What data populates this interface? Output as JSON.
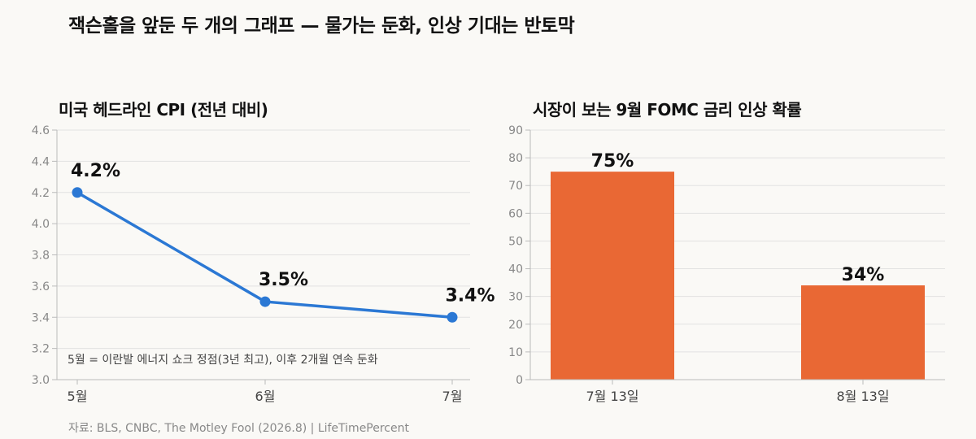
{
  "title": "잭슨홀을 앞둔 두 개의 그래프 — 물가는 둔화, 인상 기대는 반토막",
  "source": "자료: BLS, CNBC, The Motley Fool (2026.8) | LifeTimePercent",
  "colors": {
    "line": "#2b78d4",
    "bar": "#e96834",
    "grid": "#e2e2e2",
    "axis": "#bbbbbb"
  },
  "chart_data": [
    {
      "type": "line",
      "title": "미국 헤드라인 CPI (전년 대비)",
      "categories": [
        "5월",
        "6월",
        "7월"
      ],
      "series": [
        {
          "values": [
            4.2,
            3.5,
            3.4
          ]
        }
      ],
      "data_labels": [
        "4.2%",
        "3.5%",
        "3.4%"
      ],
      "yticks": [
        "3.0",
        "3.2",
        "3.4",
        "3.6",
        "3.8",
        "4.0",
        "4.2",
        "4.4",
        "4.6"
      ],
      "ylim": [
        3.0,
        4.6
      ],
      "grid": true,
      "annotation": "5월 = 이란발 에너지 쇼크 정점(3년 최고), 이후 2개월 연속 둔화"
    },
    {
      "type": "bar",
      "title": "시장이 보는 9월 FOMC 금리 인상 확률",
      "categories": [
        "7월 13일",
        "8월 13일"
      ],
      "values": [
        75,
        34
      ],
      "data_labels": [
        "75%",
        "34%"
      ],
      "yticks": [
        "0",
        "10",
        "20",
        "30",
        "40",
        "50",
        "60",
        "70",
        "80",
        "90"
      ],
      "ylim": [
        0,
        90
      ],
      "grid": true
    }
  ]
}
